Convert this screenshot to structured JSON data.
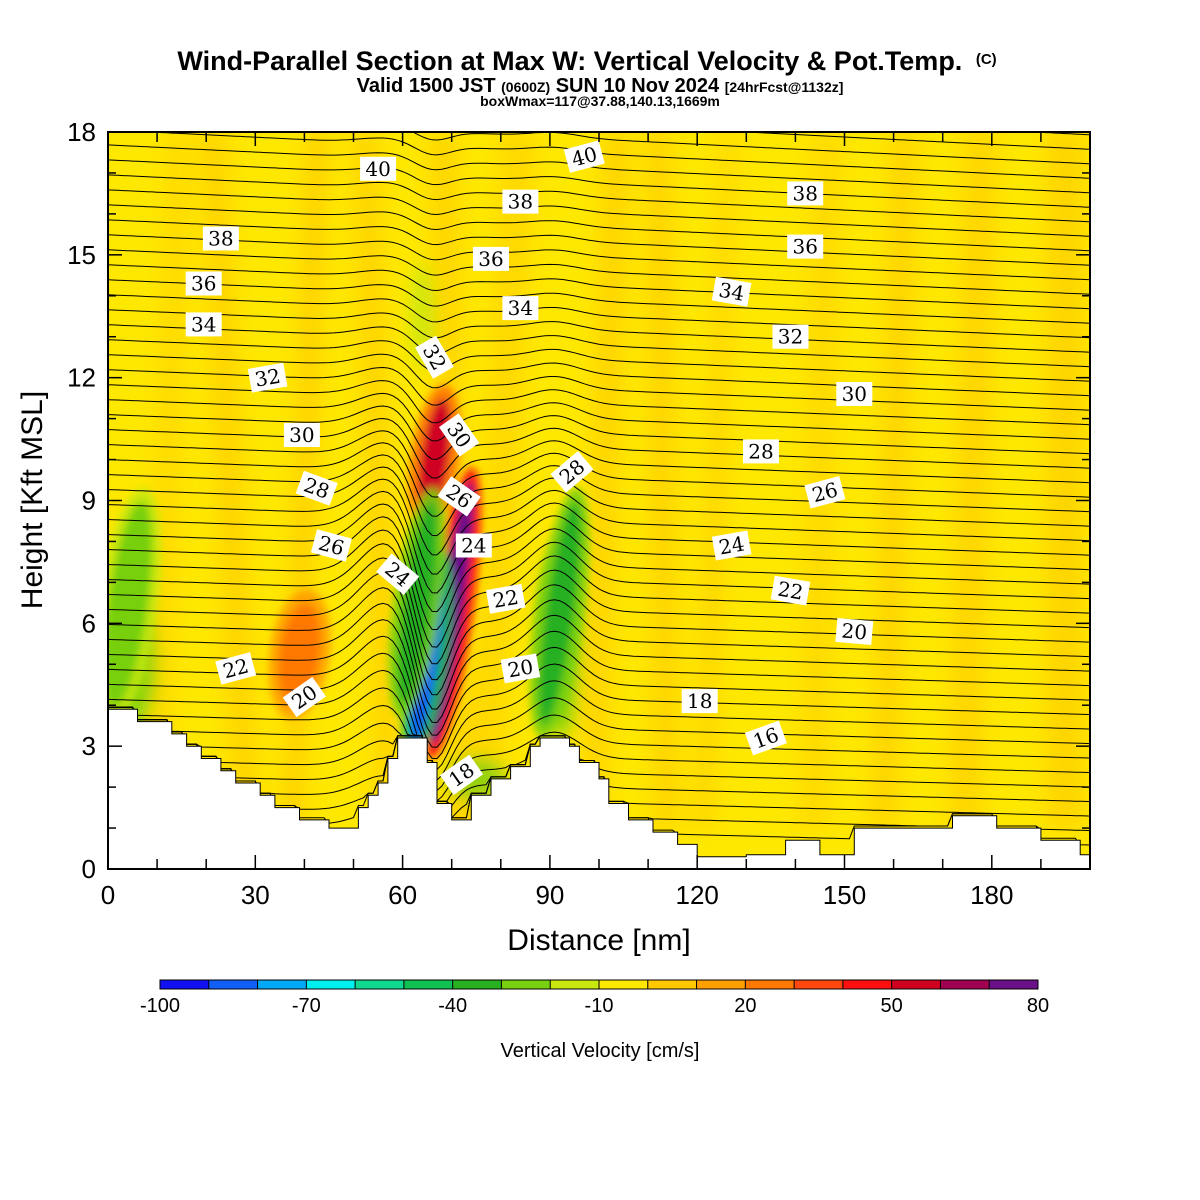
{
  "header": {
    "title_main": "Wind-Parallel Section at Max W: Vertical Velocity & Pot.Temp.",
    "title_copyright": "(C)",
    "subtitle_a": "Valid 1500 JST",
    "subtitle_b": "(0600Z)",
    "subtitle_c": "SUN 10 Nov 2024",
    "subtitle_d": "[24hrFcst@1132z]",
    "subtitle_line3": "boxWmax=117@37.88,140.13,1669m"
  },
  "chart_data": {
    "type": "contour",
    "xlabel": "Distance [nm]",
    "ylabel": "Height [Kft MSL]",
    "xlim": [
      0,
      200
    ],
    "ylim": [
      0,
      18
    ],
    "x_ticks": [
      0,
      30,
      60,
      90,
      120,
      150,
      180
    ],
    "y_ticks": [
      0,
      3,
      6,
      9,
      12,
      15,
      18
    ],
    "colorbar": {
      "label": "Vertical Velocity [cm/s]",
      "tick_labels": [
        "-100",
        "-70",
        "-40",
        "-10",
        "20",
        "50",
        "80"
      ],
      "colors": [
        "#1010f0",
        "#1060f8",
        "#00a8f8",
        "#00f0f0",
        "#10d890",
        "#10c050",
        "#28b020",
        "#78d010",
        "#c8e810",
        "#ffe800",
        "#ffc800",
        "#ffa000",
        "#ff7800",
        "#ff4810",
        "#ff1010",
        "#d00020",
        "#a00050",
        "#6a1088"
      ]
    },
    "velocity_cores": [
      {
        "x": 70,
        "y_min": 3.0,
        "y_max": 9.5,
        "value": 80
      },
      {
        "x": 66.5,
        "y_min": 8.5,
        "y_max": 11.5,
        "value": 50
      },
      {
        "x": 65,
        "y_min": 3.0,
        "y_max": 7.5,
        "value": -90
      },
      {
        "x": 63,
        "y_min": 4.0,
        "y_max": 9.0,
        "value": -40
      },
      {
        "x": 92,
        "y_min": 3.5,
        "y_max": 9.0,
        "value": -40
      },
      {
        "x": 4,
        "y_min": 3.9,
        "y_max": 9.0,
        "value": -25
      },
      {
        "x": 39,
        "y_min": 4.0,
        "y_max": 6.5,
        "value": 25
      }
    ],
    "theta_contours": {
      "levels": [
        16,
        18,
        20,
        22,
        24,
        26,
        28,
        30,
        32,
        34,
        36,
        38,
        40
      ],
      "labels": [
        {
          "text": "40",
          "x": 55,
          "y": 17.1,
          "angle": 0
        },
        {
          "text": "40",
          "x": 97,
          "y": 17.4,
          "angle": -15
        },
        {
          "text": "38",
          "x": 23,
          "y": 15.4,
          "angle": 0
        },
        {
          "text": "38",
          "x": 84,
          "y": 16.3,
          "angle": 0
        },
        {
          "text": "38",
          "x": 142,
          "y": 16.5,
          "angle": 0
        },
        {
          "text": "36",
          "x": 19.5,
          "y": 14.3,
          "angle": 0
        },
        {
          "text": "36",
          "x": 78,
          "y": 14.9,
          "angle": 0
        },
        {
          "text": "36",
          "x": 142,
          "y": 15.2,
          "angle": 0
        },
        {
          "text": "34",
          "x": 19.5,
          "y": 13.3,
          "angle": 0
        },
        {
          "text": "34",
          "x": 84,
          "y": 13.7,
          "angle": 0
        },
        {
          "text": "34",
          "x": 127,
          "y": 14.1,
          "angle": 10
        },
        {
          "text": "32",
          "x": 32.5,
          "y": 12.0,
          "angle": -10
        },
        {
          "text": "32",
          "x": 66.5,
          "y": 12.5,
          "angle": 60
        },
        {
          "text": "32",
          "x": 139,
          "y": 13.0,
          "angle": 0
        },
        {
          "text": "30",
          "x": 39.5,
          "y": 10.6,
          "angle": 0
        },
        {
          "text": "30",
          "x": 71.5,
          "y": 10.6,
          "angle": 55
        },
        {
          "text": "30",
          "x": 152,
          "y": 11.6,
          "angle": 0
        },
        {
          "text": "28",
          "x": 42.5,
          "y": 9.3,
          "angle": 20
        },
        {
          "text": "28",
          "x": 94.5,
          "y": 9.7,
          "angle": -40
        },
        {
          "text": "28",
          "x": 133,
          "y": 10.2,
          "angle": 0
        },
        {
          "text": "26",
          "x": 45.5,
          "y": 7.9,
          "angle": 15
        },
        {
          "text": "26",
          "x": 71.5,
          "y": 9.1,
          "angle": 35
        },
        {
          "text": "26",
          "x": 146,
          "y": 9.2,
          "angle": -15
        },
        {
          "text": "24",
          "x": 59,
          "y": 7.2,
          "angle": 40
        },
        {
          "text": "24",
          "x": 74.5,
          "y": 7.9,
          "angle": 0
        },
        {
          "text": "24",
          "x": 127,
          "y": 7.9,
          "angle": -10
        },
        {
          "text": "22",
          "x": 26,
          "y": 4.9,
          "angle": -15
        },
        {
          "text": "22",
          "x": 81,
          "y": 6.6,
          "angle": -10
        },
        {
          "text": "22",
          "x": 139,
          "y": 6.8,
          "angle": 10
        },
        {
          "text": "20",
          "x": 40,
          "y": 4.2,
          "angle": -35
        },
        {
          "text": "20",
          "x": 84,
          "y": 4.9,
          "angle": -10
        },
        {
          "text": "20",
          "x": 152,
          "y": 5.8,
          "angle": 5
        },
        {
          "text": "18",
          "x": 72,
          "y": 2.3,
          "angle": -35
        },
        {
          "text": "18",
          "x": 120.5,
          "y": 4.1,
          "angle": 0
        },
        {
          "text": "16",
          "x": 134,
          "y": 3.2,
          "angle": -20
        }
      ]
    },
    "terrain": [
      [
        0,
        3.9
      ],
      [
        6,
        3.9
      ],
      [
        6,
        3.6
      ],
      [
        13,
        3.6
      ],
      [
        13,
        3.3
      ],
      [
        16,
        3.3
      ],
      [
        16,
        3.0
      ],
      [
        19,
        3.0
      ],
      [
        19,
        2.7
      ],
      [
        23,
        2.7
      ],
      [
        23,
        2.4
      ],
      [
        26,
        2.4
      ],
      [
        26,
        2.1
      ],
      [
        31,
        2.1
      ],
      [
        31,
        1.8
      ],
      [
        34,
        1.8
      ],
      [
        34,
        1.5
      ],
      [
        39,
        1.5
      ],
      [
        39,
        1.2
      ],
      [
        45,
        1.2
      ],
      [
        45,
        1.0
      ],
      [
        51,
        1.0
      ],
      [
        51,
        1.5
      ],
      [
        53,
        1.5
      ],
      [
        53,
        1.8
      ],
      [
        55,
        1.8
      ],
      [
        55,
        2.1
      ],
      [
        57,
        2.1
      ],
      [
        57,
        2.7
      ],
      [
        59,
        2.7
      ],
      [
        59,
        3.2
      ],
      [
        65,
        3.2
      ],
      [
        65,
        2.6
      ],
      [
        67,
        2.6
      ],
      [
        67,
        1.6
      ],
      [
        70,
        1.6
      ],
      [
        70,
        1.2
      ],
      [
        74,
        1.2
      ],
      [
        74,
        1.8
      ],
      [
        78,
        1.8
      ],
      [
        78,
        2.2
      ],
      [
        82,
        2.2
      ],
      [
        82,
        2.5
      ],
      [
        86,
        2.5
      ],
      [
        86,
        3.0
      ],
      [
        88,
        3.0
      ],
      [
        88,
        3.2
      ],
      [
        94,
        3.2
      ],
      [
        94,
        3.0
      ],
      [
        96,
        3.0
      ],
      [
        96,
        2.6
      ],
      [
        100,
        2.6
      ],
      [
        100,
        2.2
      ],
      [
        102,
        2.2
      ],
      [
        102,
        1.6
      ],
      [
        106,
        1.6
      ],
      [
        106,
        1.2
      ],
      [
        111,
        1.2
      ],
      [
        111,
        0.9
      ],
      [
        116,
        0.9
      ],
      [
        116,
        0.6
      ],
      [
        120,
        0.6
      ],
      [
        120,
        0.3
      ],
      [
        130,
        0.3
      ],
      [
        130,
        0.35
      ],
      [
        138,
        0.35
      ],
      [
        138,
        0.7
      ],
      [
        145,
        0.7
      ],
      [
        145,
        0.35
      ],
      [
        152,
        0.35
      ],
      [
        152,
        1.0
      ],
      [
        172,
        1.0
      ],
      [
        172,
        1.3
      ],
      [
        181,
        1.3
      ],
      [
        181,
        1.0
      ],
      [
        190,
        1.0
      ],
      [
        190,
        0.7
      ],
      [
        198,
        0.7
      ],
      [
        198,
        0.35
      ],
      [
        200,
        0.35
      ]
    ]
  }
}
